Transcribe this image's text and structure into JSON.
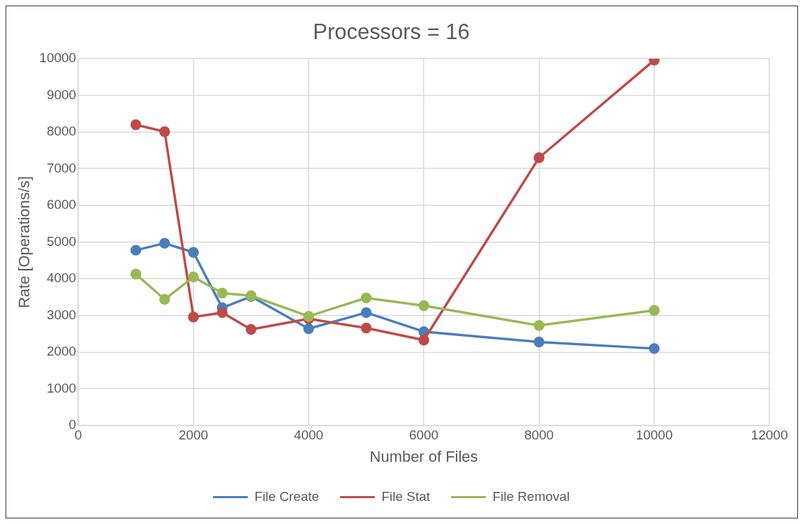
{
  "chart_data": {
    "type": "line",
    "title": "Processors = 16",
    "xlabel": "Number of Files",
    "ylabel": "Rate [Operations/s]",
    "x": [
      1000,
      1500,
      2000,
      2500,
      3000,
      4000,
      5000,
      6000,
      8000,
      10000
    ],
    "xlim": [
      0,
      12000
    ],
    "xticks": [
      0,
      2000,
      4000,
      6000,
      8000,
      10000,
      12000
    ],
    "ylim": [
      0,
      10000
    ],
    "yticks": [
      0,
      1000,
      2000,
      3000,
      4000,
      5000,
      6000,
      7000,
      8000,
      9000,
      10000
    ],
    "grid": true,
    "legend": "bottom",
    "marker": "circle",
    "line_style": "solid",
    "series": [
      {
        "name": "File Create",
        "color": "#4a7ebb",
        "values": [
          4780,
          4970,
          4720,
          3210,
          3520,
          2640,
          3080,
          2560,
          2280,
          2100
        ]
      },
      {
        "name": "File Stat",
        "color": "#be4b48",
        "values": [
          8200,
          8010,
          2960,
          3080,
          2620,
          2910,
          2660,
          2330,
          7300,
          9960
        ]
      },
      {
        "name": "File Removal",
        "color": "#98b954",
        "values": [
          4130,
          3440,
          4050,
          3610,
          3540,
          2980,
          3480,
          3270,
          2730,
          3140
        ]
      }
    ]
  }
}
